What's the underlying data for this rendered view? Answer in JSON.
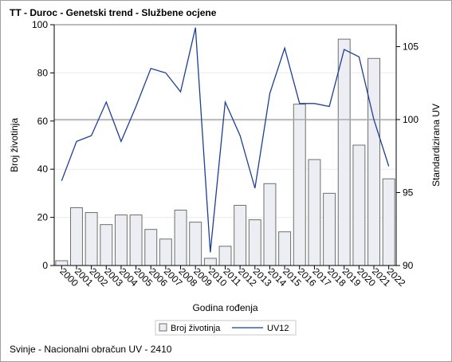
{
  "title": "TT - Duroc - Genetski trend - Službene ocjene",
  "footnote": "Svinje - Nacionalni obračun UV - 2410",
  "colors": {
    "bar_fill": "#eceef3",
    "bar_stroke": "#6f6f6f",
    "line": "#1f3f94",
    "refline": "#a8a8a8",
    "grid": "#ececec"
  },
  "chart_data": {
    "type": "bar",
    "categories": [
      "2000",
      "2001",
      "2002",
      "2003",
      "2004",
      "2005",
      "2006",
      "2007",
      "2008",
      "2009",
      "2010",
      "2011",
      "2012",
      "2013",
      "2014",
      "2015",
      "2016",
      "2017",
      "2018",
      "2019",
      "2020",
      "2021",
      "2022"
    ],
    "xlabel": "Godina rođenja",
    "ylabel": "Broj životinja",
    "y2label": "Standardizirana UV",
    "ylim": [
      0,
      100
    ],
    "y2lim": [
      90,
      106.5
    ],
    "yticks": [
      0,
      20,
      40,
      60,
      80,
      100
    ],
    "y2ticks": [
      90,
      95,
      100,
      105
    ],
    "reference_line_y2": 100,
    "grid": true,
    "series": [
      {
        "name": "Broj životinja",
        "type": "bar",
        "axis": "left",
        "values": [
          2,
          24,
          22,
          17,
          21,
          21,
          15,
          11,
          23,
          18,
          3,
          8,
          25,
          19,
          34,
          14,
          67,
          44,
          30,
          94,
          50,
          86,
          36
        ]
      },
      {
        "name": "UV12",
        "type": "line",
        "axis": "right",
        "values": [
          95.8,
          98.5,
          98.9,
          101.2,
          98.5,
          100.9,
          103.5,
          103.2,
          101.9,
          106.3,
          90.9,
          101.2,
          98.9,
          95.3,
          101.8,
          104.9,
          101.1,
          101.1,
          100.9,
          104.8,
          104.3,
          100.0,
          96.8
        ]
      }
    ],
    "legend": {
      "position": "bottom",
      "entries": [
        "Broj životinja",
        "UV12"
      ]
    }
  }
}
